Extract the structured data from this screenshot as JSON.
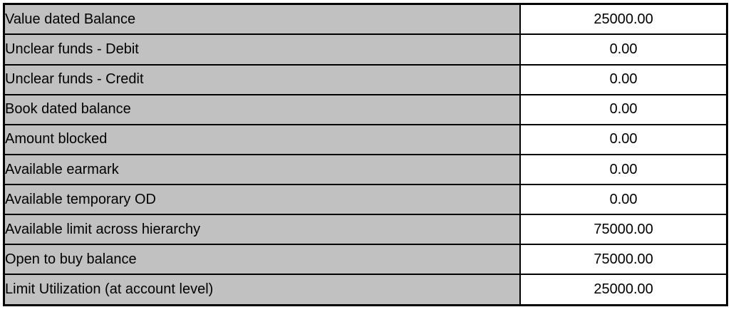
{
  "table": {
    "name": "account-balance-summary",
    "rows": [
      {
        "label": "Value dated Balance",
        "value": "25000.00"
      },
      {
        "label": "Unclear funds - Debit",
        "value": "0.00"
      },
      {
        "label": "Unclear funds - Credit",
        "value": "0.00"
      },
      {
        "label": "Book dated balance",
        "value": "0.00"
      },
      {
        "label": "Amount blocked",
        "value": "0.00"
      },
      {
        "label": "Available earmark",
        "value": "0.00"
      },
      {
        "label": "Available temporary OD",
        "value": "0.00"
      },
      {
        "label": "Available limit across hierarchy",
        "value": "75000.00"
      },
      {
        "label": "Open to buy balance",
        "value": "75000.00"
      },
      {
        "label": "Limit Utilization (at account level)",
        "value": "25000.00"
      }
    ],
    "colors": {
      "label_background": "#c1c1c1",
      "value_background": "#ffffff",
      "border": "#000000",
      "text": "#000000"
    }
  }
}
